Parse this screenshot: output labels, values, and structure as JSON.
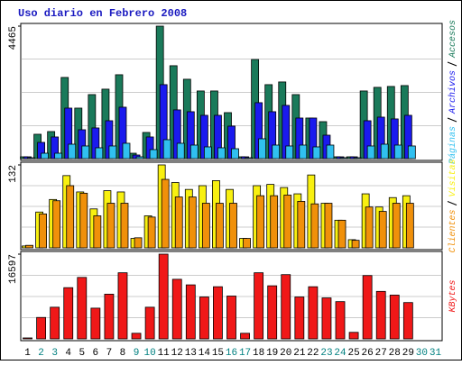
{
  "chart_data": {
    "type": "bar",
    "title": "Uso diario en Febrero 2008",
    "categories": [
      "1",
      "2",
      "3",
      "4",
      "5",
      "6",
      "7",
      "8",
      "9",
      "10",
      "11",
      "12",
      "13",
      "14",
      "15",
      "16",
      "17",
      "18",
      "19",
      "20",
      "21",
      "22",
      "23",
      "24",
      "25",
      "26",
      "27",
      "28",
      "29",
      "30",
      "31"
    ],
    "category_colors": [
      "#000000",
      "#008080",
      "#008080",
      "#000000",
      "#000000",
      "#000000",
      "#000000",
      "#000000",
      "#008080",
      "#008080",
      "#000000",
      "#000000",
      "#000000",
      "#000000",
      "#000000",
      "#008080",
      "#008080",
      "#000000",
      "#000000",
      "#000000",
      "#000000",
      "#000000",
      "#008080",
      "#008080",
      "#000000",
      "#000000",
      "#000000",
      "#000000",
      "#000000",
      "#008080",
      "#008080"
    ],
    "panels": [
      {
        "ylim": [
          0,
          4465
        ],
        "yticks": [
          4465
        ],
        "series": [
          {
            "name": "Accesos",
            "color": "#1a7a5a",
            "values": [
              61,
              821,
              912,
              2736,
              1702,
              2158,
              2341,
              2827,
              182,
              882,
              4465,
              3131,
              2675,
              2280,
              2280,
              1550,
              61,
              3344,
              2493,
              2584,
              2158,
              1368,
              1246,
              61,
              61,
              2280,
              2402,
              2432,
              2462,
              null,
              null
            ]
          },
          {
            "name": "Archivos",
            "color": "#1a1aee",
            "values": [
              61,
              547,
              730,
              1702,
              973,
              1034,
              1277,
              1733,
              122,
              730,
              2493,
              1642,
              1581,
              1459,
              1459,
              1094,
              61,
              1885,
              1581,
              1794,
              1368,
              1368,
              790,
              61,
              61,
              1277,
              1398,
              1338,
              1459,
              null,
              null
            ]
          },
          {
            "name": "Páginas",
            "color": "#30c0f0",
            "values": [
              30,
              182,
              182,
              486,
              426,
              365,
              426,
              517,
              61,
              304,
              638,
              517,
              456,
              395,
              365,
              334,
              30,
              669,
              456,
              426,
              456,
              395,
              456,
              30,
              30,
              426,
              486,
              456,
              426,
              null,
              null
            ]
          }
        ]
      },
      {
        "ylim": [
          0,
          132
        ],
        "yticks": [
          132
        ],
        "series": [
          {
            "name": "Visitas",
            "color": "#f8f010",
            "values": [
              3,
              57,
              77,
              115,
              89,
              62,
              91,
              89,
              15,
              51,
              132,
              104,
              93,
              99,
              107,
              93,
              15,
              99,
              101,
              96,
              86,
              116,
              71,
              44,
              13,
              86,
              65,
              80,
              83,
              null,
              null
            ]
          },
          {
            "name": "Clientes",
            "color": "#f0900a",
            "values": [
              4,
              54,
              75,
              99,
              87,
              51,
              71,
              71,
              16,
              49,
              109,
              81,
              81,
              71,
              71,
              71,
              15,
              83,
              83,
              84,
              74,
              70,
              71,
              44,
              12,
              65,
              58,
              71,
              71,
              null,
              null
            ]
          }
        ]
      },
      {
        "ylim": [
          0,
          16597
        ],
        "yticks": [
          16597
        ],
        "series": [
          {
            "name": "KBytes",
            "color": "#f01818",
            "values": [
              182,
              4195,
              6201,
              10032,
              12038,
              6019,
              8755,
              12950,
              1094,
              6201,
              16597,
              11673,
              10579,
              8208,
              10214,
              8390,
              1094,
              12950,
              10397,
              12586,
              8208,
              10214,
              8026,
              7296,
              1277,
              12403,
              9302,
              8573,
              7114,
              null,
              null
            ]
          }
        ]
      }
    ]
  }
}
